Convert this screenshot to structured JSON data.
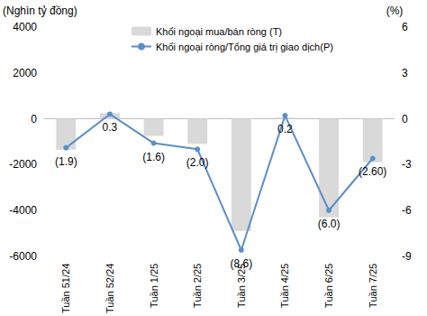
{
  "chart_data": {
    "type": "bar",
    "ylabel": "(Nghìn tỷ đồng)",
    "y2label": "(%)",
    "categories": [
      "Tuần 51/24",
      "Tuần 52/24",
      "Tuần 1/25",
      "Tuần 2/25",
      "Tuần 3/25",
      "Tuần 4/25",
      "Tuần 6/25",
      "Tuần 7/25"
    ],
    "series": [
      {
        "name": "Khối ngoại mua/bán ròng (T)",
        "type": "bar",
        "color": "#d9d9d9",
        "values": [
          -1350,
          250,
          -750,
          -1100,
          -4900,
          50,
          -4300,
          -1900
        ]
      },
      {
        "name": "Khối ngoại ròng/Tổng giá trị giao dịch(P)",
        "type": "line",
        "axis": "y2",
        "color": "#5b8ec9",
        "marker": "circle",
        "values": [
          -1.9,
          0.3,
          -1.6,
          -2.0,
          -8.6,
          0.2,
          -6.0,
          -2.6
        ],
        "value_labels": [
          "(1.9)",
          "0.3",
          "(1.6)",
          "(2.0)",
          "(8.6)",
          "0.2",
          "(6.0)",
          "(2.60)"
        ],
        "data_labels": true
      }
    ],
    "ylim": [
      -6000,
      4000
    ],
    "yticks": [
      -6000,
      -4000,
      -2000,
      0,
      2000,
      4000
    ],
    "y2lim": [
      -9,
      6
    ],
    "y2ticks": [
      -9,
      -6,
      -3,
      0,
      3,
      6
    ],
    "grid": false,
    "legend": "top"
  }
}
